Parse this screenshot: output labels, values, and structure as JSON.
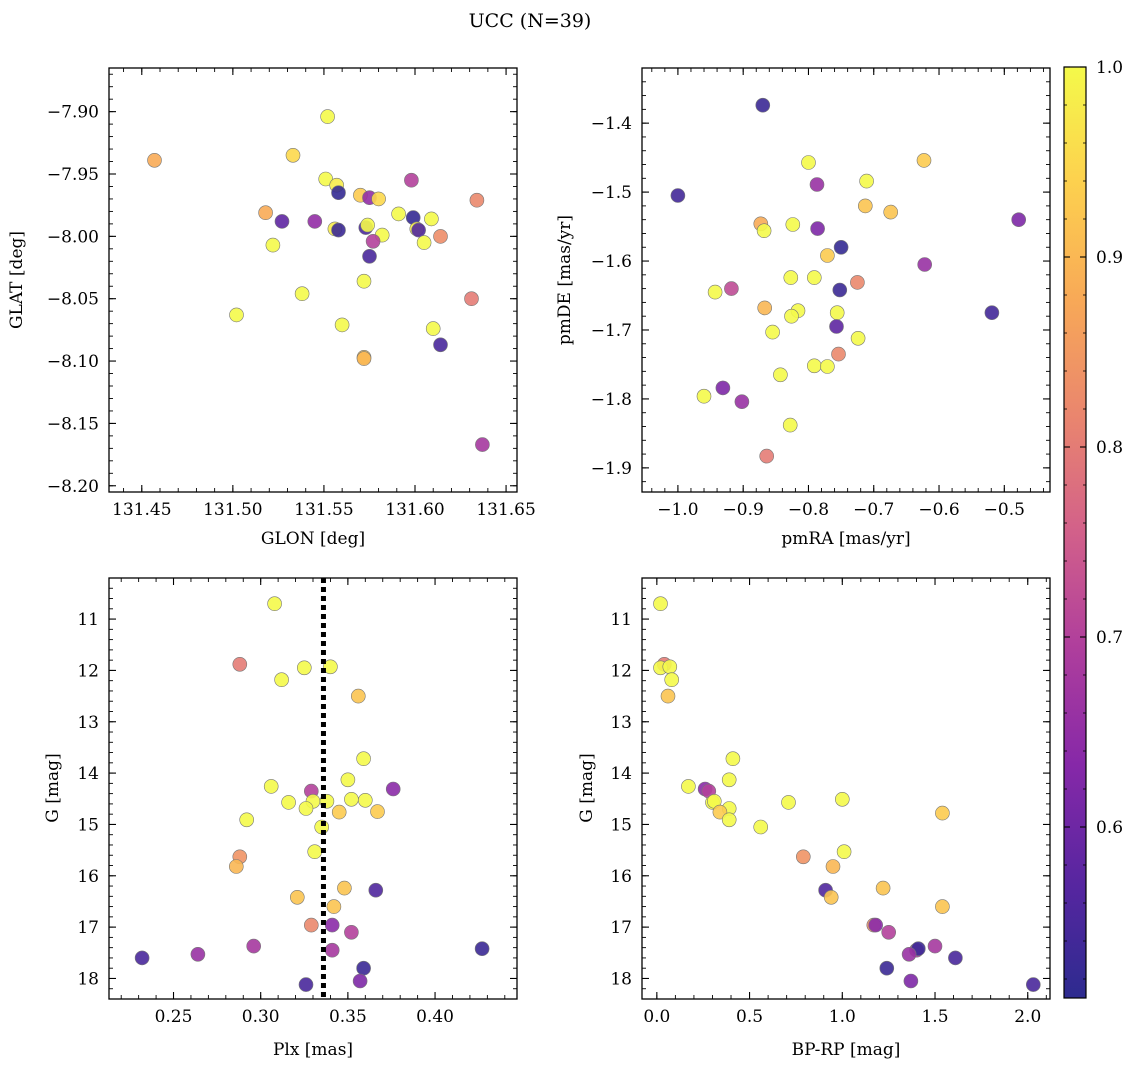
{
  "figure": {
    "title": "UCC (N=39)"
  },
  "colorbar": {
    "vmin": 0.51,
    "vmax": 1.0,
    "ticks": [
      "0.6",
      "0.7",
      "0.8",
      "0.9",
      "1.0"
    ],
    "tick_values": [
      0.6,
      0.7,
      0.8,
      0.9,
      1.0
    ],
    "colormap": "plasma"
  },
  "chart_data": [
    {
      "type": "scatter",
      "xlabel": "GLON [deg]",
      "ylabel": "GLAT [deg]",
      "xlim": [
        131.432,
        131.656
      ],
      "ylim": [
        -8.205,
        -7.865
      ],
      "y_inverted": false,
      "xticks": [
        131.45,
        131.5,
        131.55,
        131.6,
        131.65
      ],
      "xtick_labels": [
        "131.45",
        "131.50",
        "131.55",
        "131.60",
        "131.65"
      ],
      "yticks": [
        -7.9,
        -7.95,
        -8.0,
        -8.05,
        -8.1,
        -8.15,
        -8.2
      ],
      "ytick_labels": [
        "−7.90",
        "−7.95",
        "−8.00",
        "−8.05",
        "−8.10",
        "−8.15",
        "−8.20"
      ],
      "points": [
        {
          "x": 131.457,
          "y": -7.939,
          "c": 0.88
        },
        {
          "x": 131.552,
          "y": -7.904,
          "c": 1.0
        },
        {
          "x": 131.533,
          "y": -7.935,
          "c": 0.95
        },
        {
          "x": 131.551,
          "y": -7.954,
          "c": 1.0
        },
        {
          "x": 131.557,
          "y": -7.959,
          "c": 0.98
        },
        {
          "x": 131.558,
          "y": -7.965,
          "c": 0.52
        },
        {
          "x": 131.57,
          "y": -7.967,
          "c": 0.93
        },
        {
          "x": 131.575,
          "y": -7.969,
          "c": 0.65
        },
        {
          "x": 131.58,
          "y": -7.97,
          "c": 0.95
        },
        {
          "x": 131.598,
          "y": -7.955,
          "c": 0.7
        },
        {
          "x": 131.634,
          "y": -7.971,
          "c": 0.82
        },
        {
          "x": 131.518,
          "y": -7.981,
          "c": 0.88
        },
        {
          "x": 131.527,
          "y": -7.988,
          "c": 0.58
        },
        {
          "x": 131.545,
          "y": -7.988,
          "c": 0.65
        },
        {
          "x": 131.556,
          "y": -7.994,
          "c": 0.98
        },
        {
          "x": 131.558,
          "y": -7.995,
          "c": 0.53
        },
        {
          "x": 131.573,
          "y": -7.993,
          "c": 0.55
        },
        {
          "x": 131.574,
          "y": -7.991,
          "c": 1.0
        },
        {
          "x": 131.582,
          "y": -7.999,
          "c": 1.0
        },
        {
          "x": 131.591,
          "y": -7.982,
          "c": 1.0
        },
        {
          "x": 131.599,
          "y": -7.985,
          "c": 0.52
        },
        {
          "x": 131.601,
          "y": -7.994,
          "c": 0.98
        },
        {
          "x": 131.602,
          "y": -7.995,
          "c": 0.56
        },
        {
          "x": 131.609,
          "y": -7.986,
          "c": 1.0
        },
        {
          "x": 131.614,
          "y": -8.0,
          "c": 0.83
        },
        {
          "x": 131.577,
          "y": -8.004,
          "c": 0.7
        },
        {
          "x": 131.522,
          "y": -8.007,
          "c": 1.0
        },
        {
          "x": 131.605,
          "y": -8.005,
          "c": 1.0
        },
        {
          "x": 131.575,
          "y": -8.016,
          "c": 0.55
        },
        {
          "x": 131.572,
          "y": -8.036,
          "c": 1.0
        },
        {
          "x": 131.538,
          "y": -8.046,
          "c": 1.0
        },
        {
          "x": 131.631,
          "y": -8.05,
          "c": 0.8
        },
        {
          "x": 131.502,
          "y": -8.063,
          "c": 1.0
        },
        {
          "x": 131.56,
          "y": -8.071,
          "c": 1.0
        },
        {
          "x": 131.61,
          "y": -8.074,
          "c": 1.0
        },
        {
          "x": 131.614,
          "y": -8.087,
          "c": 0.55
        },
        {
          "x": 131.572,
          "y": -8.097,
          "c": 0.92
        },
        {
          "x": 131.572,
          "y": -8.098,
          "c": 0.9
        },
        {
          "x": 131.637,
          "y": -8.167,
          "c": 0.68
        }
      ]
    },
    {
      "type": "scatter",
      "xlabel": "pmRA [mas/yr]",
      "ylabel": "pmDE [mas/yr]",
      "xlim": [
        -1.055,
        -0.43
      ],
      "ylim": [
        -1.935,
        -1.32
      ],
      "y_inverted": false,
      "xticks": [
        -1.0,
        -0.9,
        -0.8,
        -0.7,
        -0.6,
        -0.5
      ],
      "xtick_labels": [
        "−1.0",
        "−0.9",
        "−0.8",
        "−0.7",
        "−0.6",
        "−0.5"
      ],
      "yticks": [
        -1.4,
        -1.5,
        -1.6,
        -1.7,
        -1.8,
        -1.9
      ],
      "ytick_labels": [
        "−1.4",
        "−1.5",
        "−1.6",
        "−1.7",
        "−1.8",
        "−1.9"
      ],
      "points": [
        {
          "x": -0.87,
          "y": -1.374,
          "c": 0.53
        },
        {
          "x": -1.0,
          "y": -1.505,
          "c": 0.54
        },
        {
          "x": -0.8,
          "y": -1.457,
          "c": 1.0
        },
        {
          "x": -0.623,
          "y": -1.454,
          "c": 0.93
        },
        {
          "x": -0.787,
          "y": -1.489,
          "c": 0.66
        },
        {
          "x": -0.711,
          "y": -1.484,
          "c": 1.0
        },
        {
          "x": -0.713,
          "y": -1.52,
          "c": 0.92
        },
        {
          "x": -0.674,
          "y": -1.529,
          "c": 0.92
        },
        {
          "x": -0.478,
          "y": -1.54,
          "c": 0.62
        },
        {
          "x": -0.873,
          "y": -1.546,
          "c": 0.88
        },
        {
          "x": -0.868,
          "y": -1.556,
          "c": 1.0
        },
        {
          "x": -0.824,
          "y": -1.547,
          "c": 1.0
        },
        {
          "x": -0.786,
          "y": -1.553,
          "c": 0.62
        },
        {
          "x": -0.771,
          "y": -1.592,
          "c": 0.93
        },
        {
          "x": -0.75,
          "y": -1.58,
          "c": 0.52
        },
        {
          "x": -0.622,
          "y": -1.605,
          "c": 0.66
        },
        {
          "x": -0.827,
          "y": -1.624,
          "c": 1.0
        },
        {
          "x": -0.791,
          "y": -1.624,
          "c": 1.0
        },
        {
          "x": -0.725,
          "y": -1.631,
          "c": 0.82
        },
        {
          "x": -0.752,
          "y": -1.642,
          "c": 0.53
        },
        {
          "x": -0.918,
          "y": -1.64,
          "c": 0.72
        },
        {
          "x": -0.943,
          "y": -1.645,
          "c": 1.0
        },
        {
          "x": -0.867,
          "y": -1.668,
          "c": 0.9
        },
        {
          "x": -0.816,
          "y": -1.672,
          "c": 1.0
        },
        {
          "x": -0.826,
          "y": -1.68,
          "c": 1.0
        },
        {
          "x": -0.756,
          "y": -1.675,
          "c": 1.0
        },
        {
          "x": -0.519,
          "y": -1.675,
          "c": 0.54
        },
        {
          "x": -0.757,
          "y": -1.695,
          "c": 0.58
        },
        {
          "x": -0.855,
          "y": -1.703,
          "c": 1.0
        },
        {
          "x": -0.724,
          "y": -1.712,
          "c": 1.0
        },
        {
          "x": -0.754,
          "y": -1.735,
          "c": 0.82
        },
        {
          "x": -0.791,
          "y": -1.752,
          "c": 1.0
        },
        {
          "x": -0.771,
          "y": -1.753,
          "c": 1.0
        },
        {
          "x": -0.843,
          "y": -1.765,
          "c": 1.0
        },
        {
          "x": -0.931,
          "y": -1.784,
          "c": 0.62
        },
        {
          "x": -0.96,
          "y": -1.796,
          "c": 1.0
        },
        {
          "x": -0.902,
          "y": -1.804,
          "c": 0.66
        },
        {
          "x": -0.828,
          "y": -1.838,
          "c": 1.0
        },
        {
          "x": -0.864,
          "y": -1.883,
          "c": 0.8
        }
      ]
    },
    {
      "type": "scatter",
      "xlabel": "Plx [mas]",
      "ylabel": "G [mag]",
      "xlim": [
        0.213,
        0.447
      ],
      "ylim": [
        18.4,
        10.2
      ],
      "y_inverted": true,
      "xticks": [
        0.25,
        0.3,
        0.35,
        0.4
      ],
      "xtick_labels": [
        "0.25",
        "0.30",
        "0.35",
        "0.40"
      ],
      "yticks": [
        11,
        12,
        13,
        14,
        15,
        16,
        17,
        18
      ],
      "ytick_labels": [
        "11",
        "12",
        "13",
        "14",
        "15",
        "16",
        "17",
        "18"
      ],
      "vline": {
        "x": 0.336,
        "style": "dotted",
        "color": "#000000"
      },
      "points": [
        {
          "x": 0.308,
          "y": 10.7,
          "c": 1.0
        },
        {
          "x": 0.288,
          "y": 11.88,
          "c": 0.8
        },
        {
          "x": 0.325,
          "y": 11.95,
          "c": 1.0
        },
        {
          "x": 0.34,
          "y": 11.93,
          "c": 1.0
        },
        {
          "x": 0.312,
          "y": 12.18,
          "c": 1.0
        },
        {
          "x": 0.356,
          "y": 12.5,
          "c": 0.92
        },
        {
          "x": 0.359,
          "y": 13.72,
          "c": 1.0
        },
        {
          "x": 0.35,
          "y": 14.13,
          "c": 1.0
        },
        {
          "x": 0.306,
          "y": 14.26,
          "c": 1.0
        },
        {
          "x": 0.376,
          "y": 14.31,
          "c": 0.64
        },
        {
          "x": 0.329,
          "y": 14.35,
          "c": 0.7
        },
        {
          "x": 0.316,
          "y": 14.57,
          "c": 1.0
        },
        {
          "x": 0.33,
          "y": 14.55,
          "c": 1.0
        },
        {
          "x": 0.338,
          "y": 14.55,
          "c": 1.0
        },
        {
          "x": 0.352,
          "y": 14.51,
          "c": 1.0
        },
        {
          "x": 0.36,
          "y": 14.53,
          "c": 1.0
        },
        {
          "x": 0.326,
          "y": 14.69,
          "c": 1.0
        },
        {
          "x": 0.345,
          "y": 14.76,
          "c": 0.93
        },
        {
          "x": 0.367,
          "y": 14.75,
          "c": 0.93
        },
        {
          "x": 0.292,
          "y": 14.91,
          "c": 1.0
        },
        {
          "x": 0.335,
          "y": 15.05,
          "c": 1.0
        },
        {
          "x": 0.331,
          "y": 15.53,
          "c": 1.0
        },
        {
          "x": 0.288,
          "y": 15.63,
          "c": 0.84
        },
        {
          "x": 0.286,
          "y": 15.82,
          "c": 0.9
        },
        {
          "x": 0.348,
          "y": 16.24,
          "c": 0.92
        },
        {
          "x": 0.366,
          "y": 16.28,
          "c": 0.56
        },
        {
          "x": 0.321,
          "y": 16.42,
          "c": 0.92
        },
        {
          "x": 0.342,
          "y": 16.6,
          "c": 0.92
        },
        {
          "x": 0.329,
          "y": 16.96,
          "c": 0.82
        },
        {
          "x": 0.341,
          "y": 16.96,
          "c": 0.64
        },
        {
          "x": 0.352,
          "y": 17.1,
          "c": 0.7
        },
        {
          "x": 0.296,
          "y": 17.37,
          "c": 0.68
        },
        {
          "x": 0.341,
          "y": 17.45,
          "c": 0.68
        },
        {
          "x": 0.427,
          "y": 17.42,
          "c": 0.53
        },
        {
          "x": 0.264,
          "y": 17.53,
          "c": 0.66
        },
        {
          "x": 0.232,
          "y": 17.6,
          "c": 0.55
        },
        {
          "x": 0.359,
          "y": 17.8,
          "c": 0.53
        },
        {
          "x": 0.357,
          "y": 18.05,
          "c": 0.62
        },
        {
          "x": 0.326,
          "y": 18.12,
          "c": 0.55
        }
      ]
    },
    {
      "type": "scatter",
      "xlabel": "BP-RP [mag]",
      "ylabel": "G [mag]",
      "xlim": [
        -0.08,
        2.12
      ],
      "ylim": [
        18.4,
        10.2
      ],
      "y_inverted": true,
      "xticks": [
        0.0,
        0.5,
        1.0,
        1.5,
        2.0
      ],
      "xtick_labels": [
        "0.0",
        "0.5",
        "1.0",
        "1.5",
        "2.0"
      ],
      "yticks": [
        11,
        12,
        13,
        14,
        15,
        16,
        17,
        18
      ],
      "ytick_labels": [
        "11",
        "12",
        "13",
        "14",
        "15",
        "16",
        "17",
        "18"
      ],
      "points": [
        {
          "x": 0.02,
          "y": 10.7,
          "c": 1.0
        },
        {
          "x": 0.04,
          "y": 11.88,
          "c": 0.8
        },
        {
          "x": 0.02,
          "y": 11.95,
          "c": 1.0
        },
        {
          "x": 0.07,
          "y": 11.93,
          "c": 1.0
        },
        {
          "x": 0.08,
          "y": 12.18,
          "c": 1.0
        },
        {
          "x": 0.06,
          "y": 12.5,
          "c": 0.92
        },
        {
          "x": 0.41,
          "y": 13.72,
          "c": 1.0
        },
        {
          "x": 0.39,
          "y": 14.13,
          "c": 1.0
        },
        {
          "x": 0.17,
          "y": 14.26,
          "c": 1.0
        },
        {
          "x": 0.26,
          "y": 14.31,
          "c": 0.64
        },
        {
          "x": 0.28,
          "y": 14.35,
          "c": 0.7
        },
        {
          "x": 0.3,
          "y": 14.57,
          "c": 1.0
        },
        {
          "x": 0.31,
          "y": 14.55,
          "c": 1.0
        },
        {
          "x": 0.71,
          "y": 14.57,
          "c": 1.0
        },
        {
          "x": 1.0,
          "y": 14.51,
          "c": 1.0
        },
        {
          "x": 0.39,
          "y": 14.69,
          "c": 1.0
        },
        {
          "x": 0.34,
          "y": 14.76,
          "c": 0.93
        },
        {
          "x": 1.54,
          "y": 14.78,
          "c": 0.93
        },
        {
          "x": 0.39,
          "y": 14.91,
          "c": 1.0
        },
        {
          "x": 0.56,
          "y": 15.05,
          "c": 1.0
        },
        {
          "x": 1.01,
          "y": 15.53,
          "c": 1.0
        },
        {
          "x": 0.79,
          "y": 15.63,
          "c": 0.84
        },
        {
          "x": 0.95,
          "y": 15.82,
          "c": 0.9
        },
        {
          "x": 1.22,
          "y": 16.24,
          "c": 0.92
        },
        {
          "x": 0.91,
          "y": 16.28,
          "c": 0.56
        },
        {
          "x": 0.94,
          "y": 16.42,
          "c": 0.92
        },
        {
          "x": 1.54,
          "y": 16.6,
          "c": 0.92
        },
        {
          "x": 1.17,
          "y": 16.96,
          "c": 0.82
        },
        {
          "x": 1.18,
          "y": 16.96,
          "c": 0.64
        },
        {
          "x": 1.25,
          "y": 17.1,
          "c": 0.7
        },
        {
          "x": 1.5,
          "y": 17.37,
          "c": 0.68
        },
        {
          "x": 1.4,
          "y": 17.45,
          "c": 0.68
        },
        {
          "x": 1.41,
          "y": 17.42,
          "c": 0.53
        },
        {
          "x": 1.36,
          "y": 17.53,
          "c": 0.66
        },
        {
          "x": 1.61,
          "y": 17.6,
          "c": 0.55
        },
        {
          "x": 1.24,
          "y": 17.8,
          "c": 0.53
        },
        {
          "x": 1.37,
          "y": 18.05,
          "c": 0.62
        },
        {
          "x": 2.03,
          "y": 18.12,
          "c": 0.55
        }
      ]
    }
  ]
}
